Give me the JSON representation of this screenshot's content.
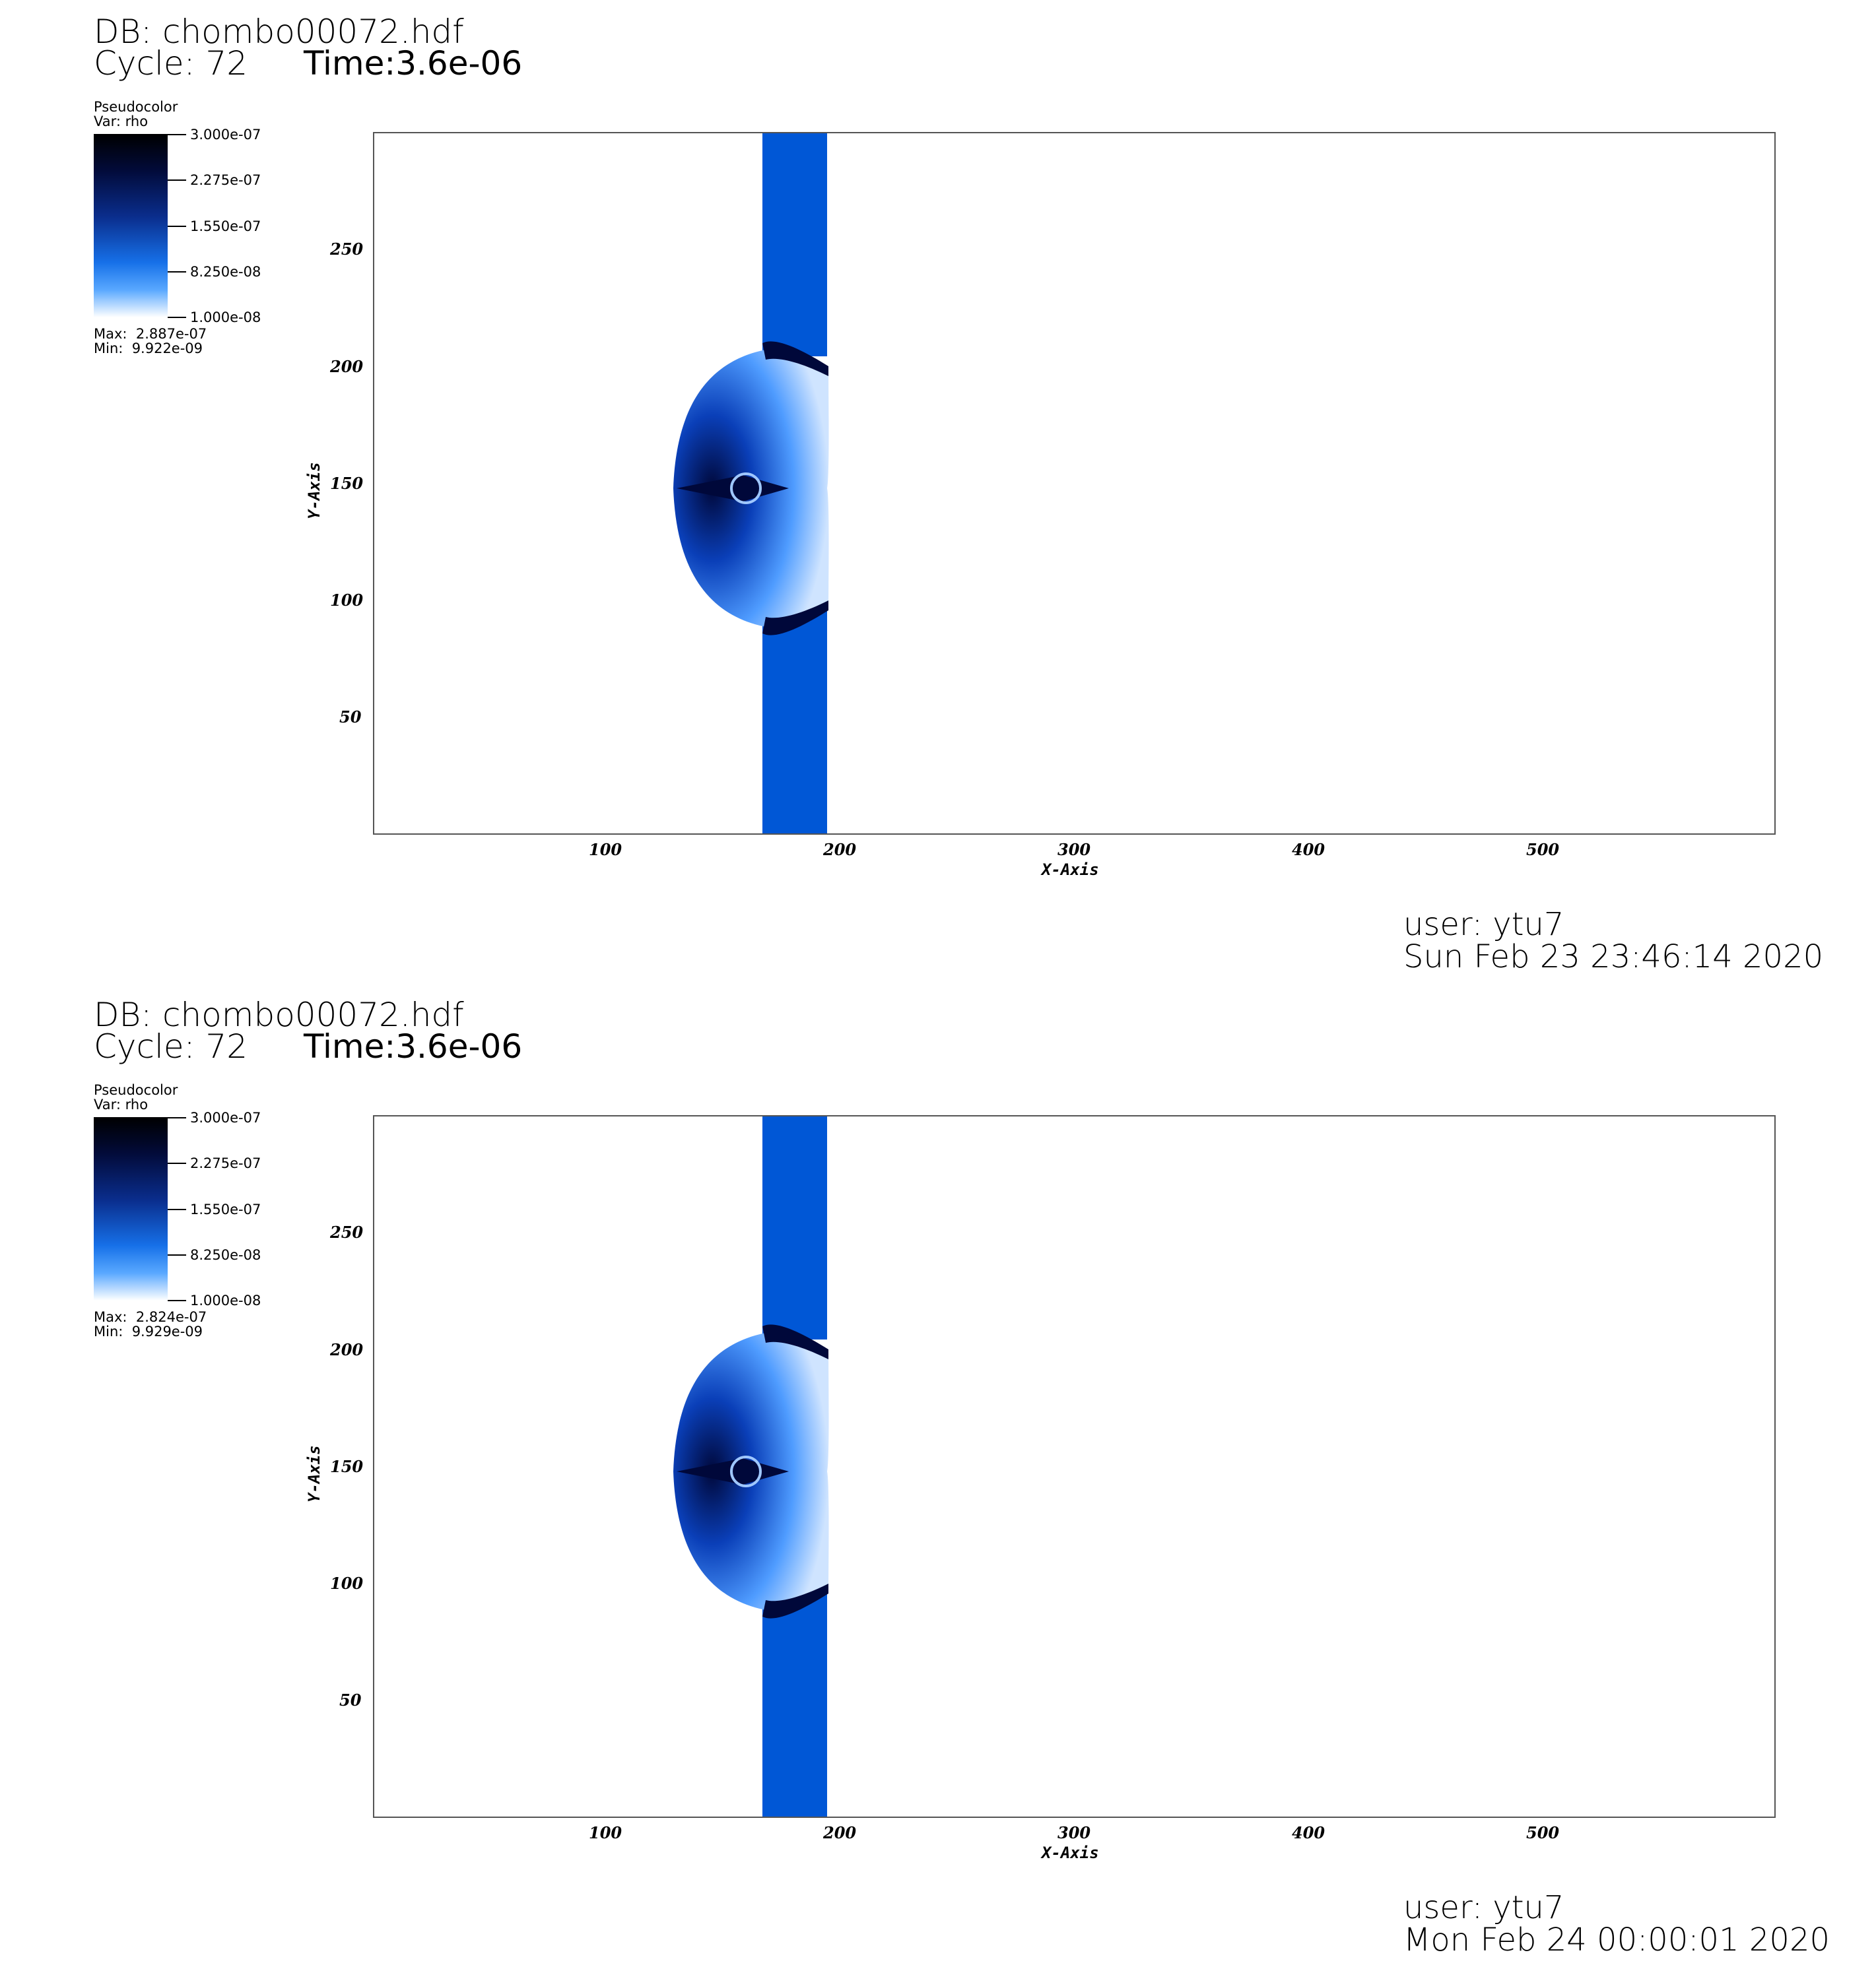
{
  "panels": [
    {
      "db": "DB: chombo00072.hdf",
      "cycle": "Cycle: 72",
      "time": "Time:3.6e-06",
      "legend": {
        "title": "Pseudocolor",
        "var": "Var: rho",
        "ticks": [
          "3.000e-07",
          "2.275e-07",
          "1.550e-07",
          "8.250e-08",
          "1.000e-08"
        ],
        "max": "Max:  2.887e-07",
        "min": "Min:  9.922e-09"
      },
      "axes": {
        "x_title": "X-Axis",
        "y_title": "Y-Axis",
        "x_ticks": [
          "100",
          "200",
          "300",
          "400",
          "500"
        ],
        "y_ticks": [
          "250",
          "200",
          "150",
          "100",
          "50"
        ]
      },
      "user": "user: ytu7",
      "date": "Sun Feb 23 23:46:14 2020"
    },
    {
      "db": "DB: chombo00072.hdf",
      "cycle": "Cycle: 72",
      "time": "Time:3.6e-06",
      "legend": {
        "title": "Pseudocolor",
        "var": "Var: rho",
        "ticks": [
          "3.000e-07",
          "2.275e-07",
          "1.550e-07",
          "8.250e-08",
          "1.000e-08"
        ],
        "max": "Max:  2.824e-07",
        "min": "Min:  9.929e-09"
      },
      "axes": {
        "x_title": "X-Axis",
        "y_title": "Y-Axis",
        "x_ticks": [
          "100",
          "200",
          "300",
          "400",
          "500"
        ],
        "y_ticks": [
          "250",
          "200",
          "150",
          "100",
          "50"
        ]
      },
      "user": "user: ytu7",
      "date": "Mon Feb 24 00:00:01 2020"
    }
  ],
  "colors": {
    "band": "#0057d6",
    "dark": "#00083a",
    "light": "#cfe4ff"
  }
}
